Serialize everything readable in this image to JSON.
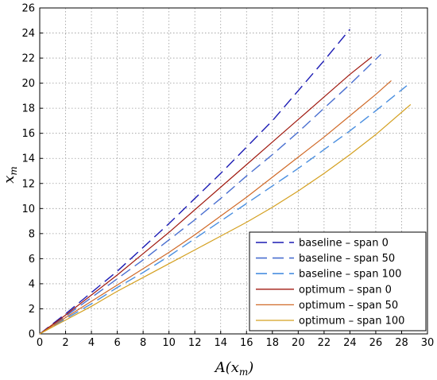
{
  "chart_data": {
    "type": "line",
    "title": "",
    "xlabel": "A(x_m)",
    "ylabel": "x_m",
    "xlim": [
      0,
      30
    ],
    "ylim": [
      0,
      26
    ],
    "xticks": [
      0,
      2,
      4,
      6,
      8,
      10,
      12,
      14,
      16,
      18,
      20,
      22,
      24,
      26,
      28,
      30
    ],
    "yticks": [
      0,
      2,
      4,
      6,
      8,
      10,
      12,
      14,
      16,
      18,
      20,
      22,
      24,
      26
    ],
    "grid": true,
    "legend_position": "bottom-right",
    "series": [
      {
        "name": "baseline – span 0",
        "color": "#1c1cb4",
        "style": "dashed",
        "x": [
          0,
          2,
          4,
          6,
          8,
          10,
          12,
          14,
          16,
          18,
          20,
          22,
          24
        ],
        "y": [
          0,
          1.6,
          3.3,
          5.0,
          6.9,
          8.8,
          10.8,
          12.8,
          14.9,
          17.0,
          19.4,
          21.8,
          24.3
        ]
      },
      {
        "name": "baseline – span 50",
        "color": "#4a6fd0",
        "style": "dashed",
        "x": [
          0,
          2,
          4,
          6,
          8,
          10,
          12,
          14,
          16,
          18,
          20,
          22,
          24,
          26.4
        ],
        "y": [
          0,
          1.4,
          2.9,
          4.4,
          5.9,
          7.5,
          9.1,
          10.8,
          12.6,
          14.3,
          16.1,
          18.0,
          19.9,
          22.3
        ]
      },
      {
        "name": "baseline – span 100",
        "color": "#4a8fe0",
        "style": "dashed",
        "x": [
          0,
          2,
          4,
          6,
          8,
          10,
          12,
          14,
          16,
          18,
          20,
          22,
          24,
          26,
          28.4
        ],
        "y": [
          0,
          1.2,
          2.4,
          3.7,
          4.9,
          6.2,
          7.6,
          9.0,
          10.4,
          11.8,
          13.2,
          14.7,
          16.2,
          17.8,
          19.8
        ]
      },
      {
        "name": "optimum – span 0",
        "color": "#a01a10",
        "style": "solid",
        "x": [
          0,
          2,
          4,
          6,
          8,
          10,
          12,
          14,
          16,
          18,
          20,
          22,
          24,
          25.7
        ],
        "y": [
          0,
          1.5,
          3.1,
          4.7,
          6.4,
          8.1,
          9.9,
          11.7,
          13.5,
          15.3,
          17.1,
          18.9,
          20.7,
          22.1
        ]
      },
      {
        "name": "optimum – span 50",
        "color": "#d06a28",
        "style": "solid",
        "x": [
          0,
          2,
          4,
          6,
          8,
          10,
          12,
          14,
          16,
          18,
          20,
          22,
          24,
          26,
          27.2
        ],
        "y": [
          0,
          1.3,
          2.6,
          3.9,
          5.2,
          6.5,
          7.9,
          9.4,
          10.9,
          12.5,
          14.1,
          15.7,
          17.4,
          19.1,
          20.2
        ]
      },
      {
        "name": "optimum – span 100",
        "color": "#d4a020",
        "style": "solid",
        "x": [
          0,
          2,
          4,
          6,
          8,
          10,
          12,
          14,
          16,
          18,
          20,
          22,
          24,
          26,
          28.7
        ],
        "y": [
          0,
          1.1,
          2.2,
          3.4,
          4.5,
          5.6,
          6.7,
          7.8,
          8.9,
          10.1,
          11.4,
          12.8,
          14.3,
          15.9,
          18.3
        ]
      }
    ]
  }
}
